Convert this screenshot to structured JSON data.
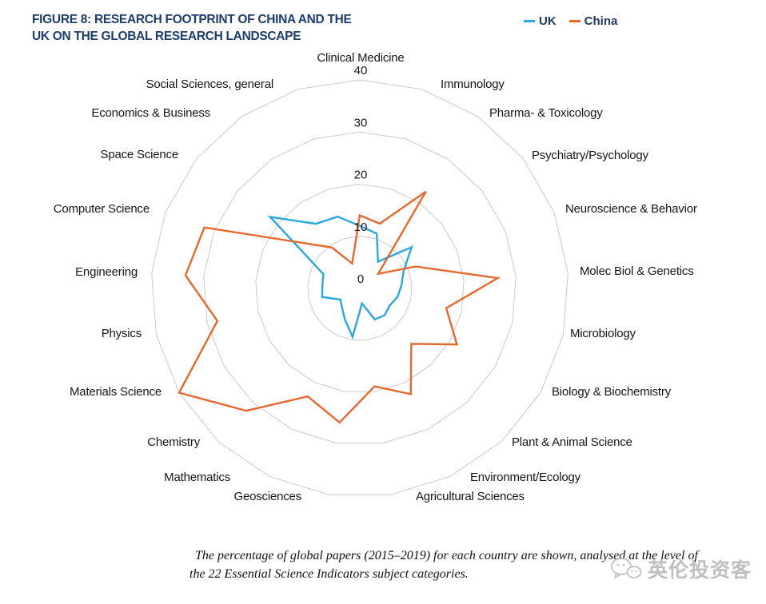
{
  "header": {
    "figure_label": "FIGURE 8:",
    "title_line1": " RESEARCH FOOTPRINT OF CHINA AND THE",
    "title_line2": "UK ON THE GLOBAL RESEARCH LANDSCAPE"
  },
  "legend": {
    "items": [
      {
        "label": "UK",
        "color": "#29a8e0"
      },
      {
        "label": "China",
        "color": "#e8672c"
      }
    ]
  },
  "chart_data": {
    "type": "radar",
    "title": "FIGURE 8: RESEARCH FOOTPRINT OF CHINA AND THE UK ON THE GLOBAL RESEARCH LANDSCAPE",
    "units": "% of global papers",
    "rlim": [
      0,
      40
    ],
    "axis_ticks": [
      0,
      10,
      20,
      30,
      40
    ],
    "ring_values": [
      10,
      20,
      30,
      40
    ],
    "grid": "concentric rings only, no radial spokes",
    "legend_position": "top-right",
    "categories": [
      "Clinical Medicine",
      "Immunology",
      "Pharma- & Toxicology",
      "Psychiatry/Psychology",
      "Neuroscience & Behavior",
      "Molec Biol & Genetics",
      "Microbiology",
      "Biology & Biochemistry",
      "Plant & Animal Science",
      "Environment/Ecology",
      "Agricultural Sciences",
      "Geosciences",
      "Mathematics",
      "Chemistry",
      "Materials Science",
      "Physics",
      "Engineering",
      "Computer Science",
      "Space Science",
      "Economics & Business",
      "Social Sciences, general"
    ],
    "series": [
      {
        "name": "UK",
        "color": "#29a8e0",
        "values": [
          12,
          11,
          6.2,
          12.7,
          9,
          8,
          7.4,
          6.6,
          7,
          6.6,
          2.9,
          9.4,
          6.6,
          5,
          4.3,
          7.4,
          7.2,
          7.5,
          22,
          15,
          14.4
        ]
      },
      {
        "name": "China",
        "color": "#e8672c",
        "values": [
          14,
          13,
          22.5,
          4.5,
          11.5,
          26.5,
          17,
          21.5,
          14.5,
          22.5,
          19,
          26,
          23,
          32,
          40,
          28,
          33.5,
          32,
          14,
          9.5,
          5
        ]
      }
    ]
  },
  "caption": {
    "line1": "The percentage of global papers (2015–2019) for each country are shown, analysed at the level of",
    "line2": "the 22 Essential Science Indicators subject categories."
  },
  "watermark": {
    "icon": "wechat-bubbles-icon",
    "text": "英伦投资客"
  }
}
